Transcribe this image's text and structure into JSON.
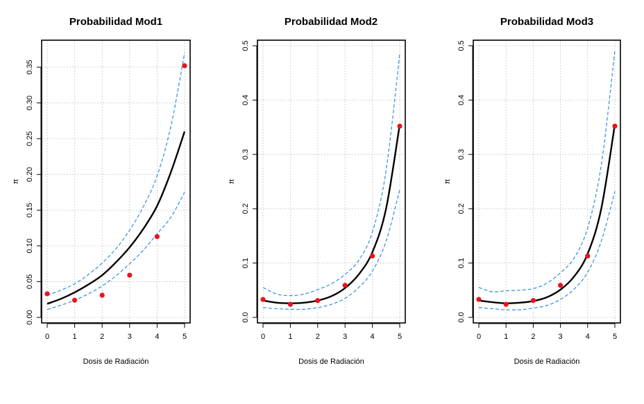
{
  "chart_data": [
    {
      "type": "line",
      "title": "Probabilidad Mod1",
      "xlabel": "Dosis de Radiación",
      "ylabel": "π",
      "xlim": [
        0,
        5
      ],
      "ylim": [
        0,
        0.38
      ],
      "xticks": [
        0,
        1,
        2,
        3,
        4,
        5
      ],
      "yticks": [
        0.0,
        0.05,
        0.1,
        0.15,
        0.2,
        0.25,
        0.3,
        0.35
      ],
      "ytick_labels": [
        "0.00",
        "0.05",
        "0.10",
        "0.15",
        "0.20",
        "0.25",
        "0.30",
        "0.35"
      ],
      "grid": true,
      "points": {
        "x": [
          0,
          1,
          2,
          3,
          4,
          5
        ],
        "y": [
          0.033,
          0.024,
          0.031,
          0.059,
          0.113,
          0.352
        ],
        "color": "#e8141c"
      },
      "fit": {
        "x": [
          0,
          0.5,
          1,
          1.5,
          2,
          2.5,
          3,
          3.5,
          4,
          4.5,
          5
        ],
        "y": [
          0.019,
          0.026,
          0.035,
          0.046,
          0.059,
          0.077,
          0.098,
          0.124,
          0.156,
          0.203,
          0.26
        ],
        "color": "#000000"
      },
      "upper": {
        "x": [
          0,
          0.5,
          1,
          1.5,
          2,
          2.5,
          3,
          3.5,
          4,
          4.5,
          5
        ],
        "y": [
          0.031,
          0.038,
          0.047,
          0.06,
          0.076,
          0.096,
          0.122,
          0.155,
          0.198,
          0.267,
          0.37
        ],
        "color": "#2d8ce8"
      },
      "lower": {
        "x": [
          0,
          0.5,
          1,
          1.5,
          2,
          2.5,
          3,
          3.5,
          4,
          4.5,
          5
        ],
        "y": [
          0.011,
          0.017,
          0.024,
          0.033,
          0.044,
          0.058,
          0.075,
          0.094,
          0.117,
          0.14,
          0.175
        ],
        "color": "#2d8ce8"
      }
    },
    {
      "type": "line",
      "title": "Probabilidad Mod2",
      "xlabel": "Dosis de Radiación",
      "ylabel": "π",
      "xlim": [
        0,
        5
      ],
      "ylim": [
        0,
        0.5
      ],
      "xticks": [
        0,
        1,
        2,
        3,
        4,
        5
      ],
      "yticks": [
        0.0,
        0.1,
        0.2,
        0.3,
        0.4,
        0.5
      ],
      "ytick_labels": [
        "0.0",
        "0.1",
        "0.2",
        "0.3",
        "0.4",
        "0.5"
      ],
      "grid": true,
      "points": {
        "x": [
          0,
          1,
          2,
          3,
          4,
          5
        ],
        "y": [
          0.033,
          0.024,
          0.031,
          0.059,
          0.113,
          0.352
        ],
        "color": "#e8141c"
      },
      "fit": {
        "x": [
          0,
          0.5,
          1,
          1.5,
          2,
          2.5,
          3,
          3.5,
          4,
          4.5,
          5
        ],
        "y": [
          0.031,
          0.027,
          0.026,
          0.027,
          0.031,
          0.039,
          0.054,
          0.079,
          0.12,
          0.2,
          0.355
        ],
        "color": "#000000"
      },
      "upper": {
        "x": [
          0,
          0.5,
          1,
          1.5,
          2,
          2.5,
          3,
          3.5,
          4,
          4.5,
          5
        ],
        "y": [
          0.055,
          0.043,
          0.04,
          0.043,
          0.051,
          0.062,
          0.079,
          0.105,
          0.157,
          0.27,
          0.485
        ],
        "color": "#2d8ce8"
      },
      "lower": {
        "x": [
          0,
          0.5,
          1,
          1.5,
          2,
          2.5,
          3,
          3.5,
          4,
          4.5,
          5
        ],
        "y": [
          0.018,
          0.016,
          0.015,
          0.015,
          0.018,
          0.024,
          0.035,
          0.055,
          0.085,
          0.14,
          0.235
        ],
        "color": "#2d8ce8"
      }
    },
    {
      "type": "line",
      "title": "Probabilidad Mod3",
      "xlabel": "Dosis de Radiación",
      "ylabel": "π",
      "xlim": [
        0,
        5
      ],
      "ylim": [
        0,
        0.5
      ],
      "xticks": [
        0,
        1,
        2,
        3,
        4,
        5
      ],
      "yticks": [
        0.0,
        0.1,
        0.2,
        0.3,
        0.4,
        0.5
      ],
      "ytick_labels": [
        "0.0",
        "0.1",
        "0.2",
        "0.3",
        "0.4",
        "0.5"
      ],
      "grid": true,
      "points": {
        "x": [
          0,
          1,
          2,
          3,
          4,
          5
        ],
        "y": [
          0.033,
          0.024,
          0.031,
          0.059,
          0.113,
          0.352
        ],
        "color": "#e8141c"
      },
      "fit": {
        "x": [
          0,
          0.5,
          1,
          1.5,
          2,
          2.5,
          3,
          3.5,
          4,
          4.5,
          5
        ],
        "y": [
          0.031,
          0.028,
          0.026,
          0.027,
          0.03,
          0.037,
          0.051,
          0.075,
          0.117,
          0.2,
          0.355
        ],
        "color": "#000000"
      },
      "upper": {
        "x": [
          0,
          0.5,
          1,
          1.5,
          2,
          2.5,
          3,
          3.5,
          4,
          4.5,
          5
        ],
        "y": [
          0.055,
          0.047,
          0.049,
          0.05,
          0.053,
          0.063,
          0.082,
          0.109,
          0.165,
          0.28,
          0.49
        ],
        "color": "#2d8ce8"
      },
      "lower": {
        "x": [
          0,
          0.5,
          1,
          1.5,
          2,
          2.5,
          3,
          3.5,
          4,
          4.5,
          5
        ],
        "y": [
          0.018,
          0.016,
          0.014,
          0.014,
          0.017,
          0.022,
          0.033,
          0.052,
          0.083,
          0.14,
          0.232
        ],
        "color": "#2d8ce8"
      }
    }
  ]
}
